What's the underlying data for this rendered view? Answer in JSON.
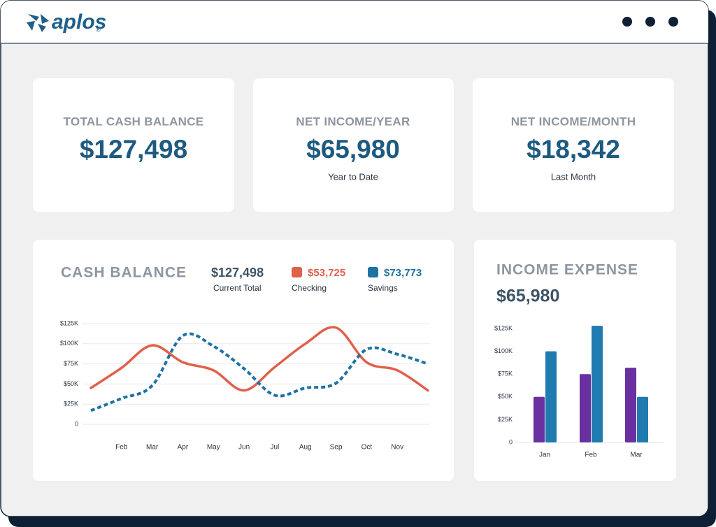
{
  "header": {
    "logo": "aplos",
    "logo_mark": "®"
  },
  "cards": [
    {
      "title": "TOTAL CASH BALANCE",
      "value": "$127,498"
    },
    {
      "title": "NET INCOME/YEAR",
      "value": "$65,980",
      "caption": "Year to Date"
    },
    {
      "title": "NET INCOME/MONTH",
      "value": "$18,342",
      "caption": "Last Month"
    }
  ],
  "chart_data": [
    {
      "type": "line",
      "title": "CASH BALANCE",
      "summary": {
        "value": "$127,498",
        "label": "Current Total"
      },
      "categories": [
        null,
        "Feb",
        "Mar",
        "Apr",
        "May",
        "Jun",
        "Jul",
        "Aug",
        "Sep",
        "Oct",
        "Nov",
        null
      ],
      "series": [
        {
          "name": "Checking",
          "total": "$53,725",
          "color": "#e0604a",
          "style": "solid",
          "values": [
            45000,
            70000,
            98000,
            77000,
            67000,
            42000,
            71000,
            100000,
            120000,
            77000,
            67000,
            42000
          ]
        },
        {
          "name": "Savings",
          "total": "$73,773",
          "color": "#1f72a3",
          "style": "dotted",
          "values": [
            17000,
            32000,
            48000,
            110000,
            97000,
            69000,
            36000,
            45000,
            51000,
            93000,
            87000,
            75000
          ]
        }
      ],
      "ylim": [
        0,
        125000
      ],
      "yticks": [
        0,
        {
          "value": 25000,
          "label": "$25K"
        },
        {
          "value": 50000,
          "label": "$50K"
        },
        {
          "value": 75000,
          "label": "$75K"
        },
        {
          "value": 100000,
          "label": "$100K"
        },
        {
          "value": 125000,
          "label": "$125K"
        }
      ],
      "grid": true
    },
    {
      "type": "bar",
      "title": "INCOME EXPENSE",
      "subtitle": "$65,980",
      "categories": [
        "Jan",
        "Feb",
        "Mar"
      ],
      "series": [
        {
          "color": "#6a2fa0",
          "values": [
            50000,
            75000,
            82000
          ]
        },
        {
          "color": "#1f7bb0",
          "values": [
            100000,
            128000,
            50000
          ]
        }
      ],
      "ylim": [
        0,
        125000
      ],
      "yticks": [
        0,
        {
          "value": 25000,
          "label": "$25K"
        },
        {
          "value": 50000,
          "label": "$50K"
        },
        {
          "value": 75000,
          "label": "$75K"
        },
        {
          "value": 100000,
          "label": "$100K"
        },
        {
          "value": 125000,
          "label": "$125K"
        }
      ],
      "grid": false
    }
  ]
}
